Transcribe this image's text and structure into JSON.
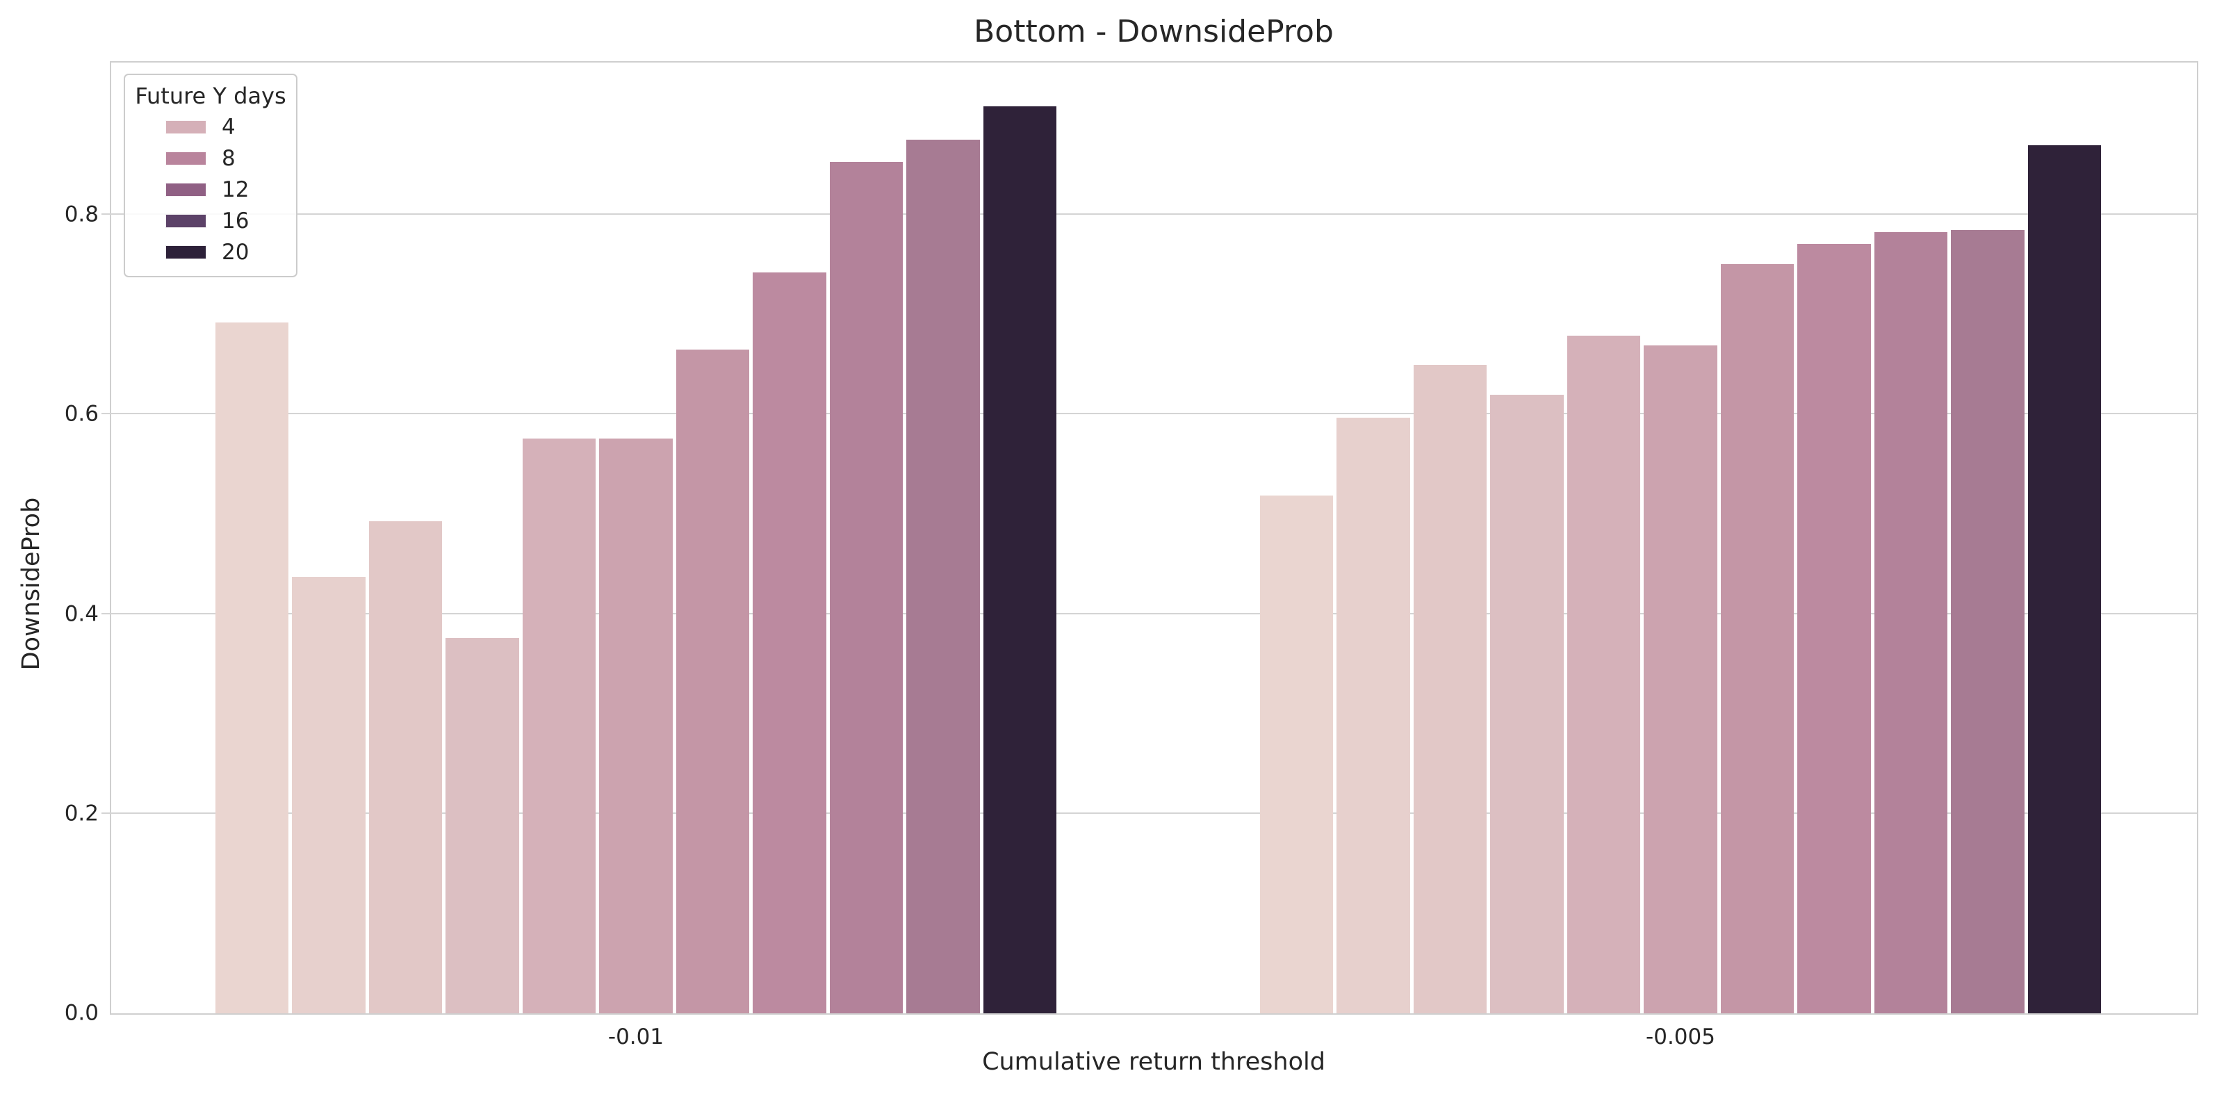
{
  "figure": {
    "background": "#ffffff",
    "text_color": "#262626",
    "grid_color": "#d4d4d4",
    "spine_color": "#cfcfcf"
  },
  "chart_data": {
    "type": "bar",
    "title": "Bottom - DownsideProb",
    "xlabel": "Cumulative return threshold",
    "ylabel": "DownsideProb",
    "categories": [
      "-0.01",
      "-0.005"
    ],
    "groups": [
      {
        "category": "-0.01",
        "values": [
          0.692,
          0.437,
          0.493,
          0.376,
          0.576,
          0.576,
          0.665,
          0.742,
          0.853,
          0.875,
          0.909
        ]
      },
      {
        "category": "-0.005",
        "values": [
          0.519,
          0.597,
          0.65,
          0.62,
          0.679,
          0.669,
          0.751,
          0.771,
          0.783,
          0.785,
          0.87
        ]
      }
    ],
    "bars_per_group": 11,
    "bar_colors": [
      "#ead5d0",
      "#e7d0cd",
      "#e2c8c7",
      "#dcbfc2",
      "#d5b1b9",
      "#cca3af",
      "#c496a6",
      "#bc8aa0",
      "#b3829a",
      "#a77b93",
      "#2f2239"
    ],
    "yticks": [
      0.0,
      0.2,
      0.4,
      0.6,
      0.8
    ],
    "ylim": [
      0.0,
      0.955
    ],
    "grid": true,
    "legend": {
      "title": "Future Y days",
      "position": "upper left",
      "entries": [
        {
          "label": "4",
          "color": "#d5b0b8"
        },
        {
          "label": "8",
          "color": "#b9849c"
        },
        {
          "label": "12",
          "color": "#906084"
        },
        {
          "label": "16",
          "color": "#5c4268"
        },
        {
          "label": "20",
          "color": "#2d2139"
        }
      ]
    }
  }
}
